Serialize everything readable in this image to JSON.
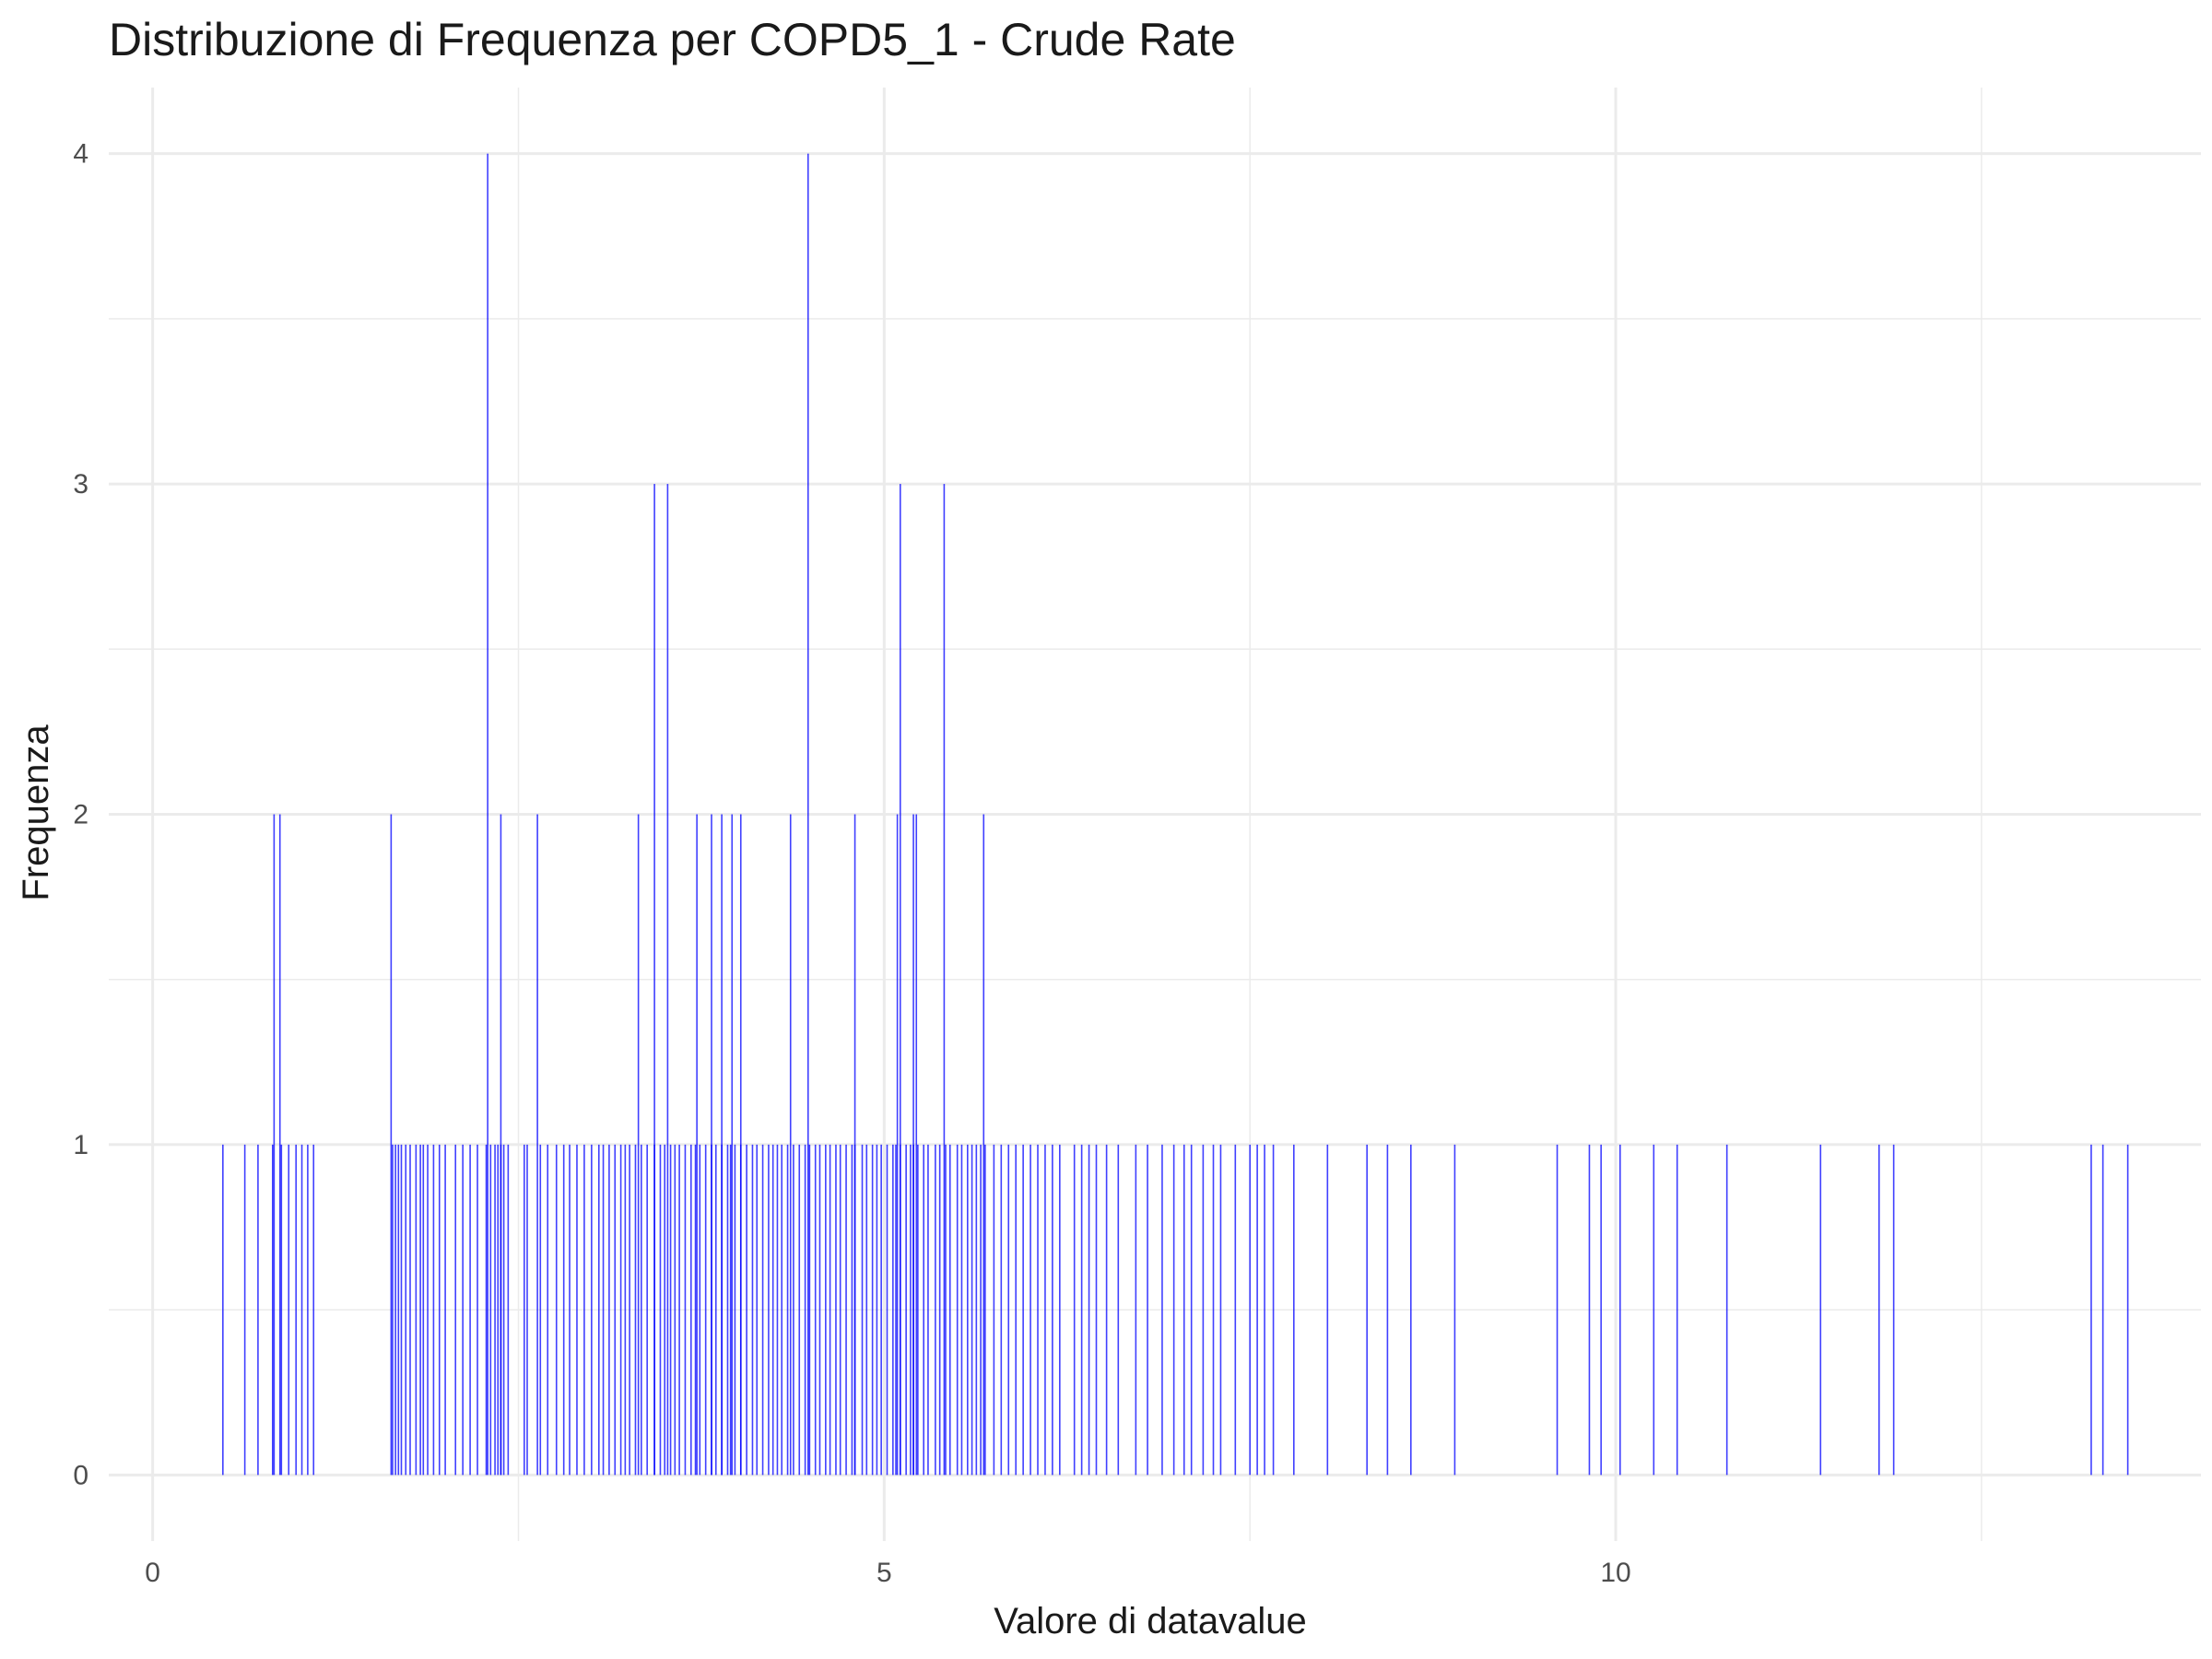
{
  "chart_data": {
    "type": "bar",
    "title": "Distribuzione di Frequenza per COPD5_1 - Crude Rate",
    "xlabel": "Valore di datavalue",
    "ylabel": "Frequenza",
    "xlim": [
      -0.3,
      14.0
    ],
    "ylim": [
      -0.2,
      4.2
    ],
    "xticks": [
      0,
      5,
      10
    ],
    "xtick_labels": [
      "0",
      "5",
      "10"
    ],
    "yticks": [
      0,
      1,
      2,
      3,
      4
    ],
    "ytick_labels": [
      "0",
      "1",
      "2",
      "3",
      "4"
    ],
    "grid": true,
    "bar_color": "#0000ff",
    "series": [
      {
        "x": [
          0.48,
          0.63,
          0.72,
          0.82,
          0.88,
          0.93,
          0.98,
          1.02,
          1.06,
          1.1,
          1.64,
          1.66,
          1.68,
          1.7,
          1.73,
          1.76,
          1.8,
          1.83,
          1.85,
          1.88,
          1.92,
          1.96,
          2.0,
          2.07,
          2.12,
          2.17,
          2.22,
          2.28,
          2.31,
          2.34,
          2.36,
          2.38,
          2.4,
          2.43,
          2.54,
          2.56,
          2.65,
          2.7,
          2.76,
          2.81,
          2.85,
          2.9,
          2.95,
          3.0,
          3.05,
          3.08,
          3.12,
          3.16,
          3.2,
          3.23,
          3.26,
          3.3,
          3.34,
          3.38,
          3.43,
          3.47,
          3.5,
          3.54,
          3.57,
          3.6,
          3.64,
          3.68,
          3.71,
          3.74,
          3.78,
          3.82,
          3.85,
          3.89,
          3.93,
          3.95,
          3.98,
          4.02,
          4.06,
          4.1,
          4.13,
          4.17,
          4.21,
          4.24,
          4.27,
          4.3,
          4.34,
          4.38,
          4.42,
          4.46,
          4.49,
          4.53,
          4.56,
          4.6,
          4.63,
          4.67,
          4.7,
          4.74,
          4.78,
          4.8,
          4.85,
          4.88,
          4.92,
          4.95,
          4.98,
          5.02,
          5.06,
          5.08,
          5.11,
          5.15,
          5.18,
          5.2,
          5.23,
          5.27,
          5.3,
          5.35,
          5.38,
          5.42,
          5.45,
          5.5,
          5.53,
          5.57,
          5.6,
          5.63,
          5.66,
          5.69,
          5.75,
          5.8,
          5.85,
          5.9,
          5.95,
          6.0,
          6.05,
          6.1,
          6.15,
          6.2,
          6.3,
          6.35,
          6.4,
          6.45,
          6.52,
          6.6,
          6.72,
          6.8,
          6.9,
          6.98,
          7.05,
          7.1,
          7.18,
          7.25,
          7.3,
          7.4,
          7.5,
          7.55,
          7.6,
          7.66,
          7.8,
          8.03,
          8.3,
          8.44,
          8.6,
          8.9,
          1.63,
          2.38,
          2.63,
          3.32,
          3.72,
          3.82,
          3.89,
          3.96,
          4.02,
          4.36,
          4.8,
          5.09,
          5.2,
          5.22,
          5.68,
          0.83,
          0.87,
          3.43,
          3.52,
          5.11,
          5.41,
          2.29,
          4.48,
          9.6,
          9.82,
          9.9,
          10.03,
          10.26,
          10.42,
          10.76,
          11.4,
          11.8,
          11.9,
          13.25,
          13.33,
          13.5
        ]
      }
    ],
    "values": [
      1,
      1,
      1,
      1,
      1,
      1,
      1,
      1,
      1,
      1,
      1,
      1,
      1,
      1,
      1,
      1,
      1,
      1,
      1,
      1,
      1,
      1,
      1,
      1,
      1,
      1,
      1,
      1,
      1,
      1,
      1,
      1,
      1,
      1,
      1,
      1,
      1,
      1,
      1,
      1,
      1,
      1,
      1,
      1,
      1,
      1,
      1,
      1,
      1,
      1,
      1,
      1,
      1,
      1,
      1,
      1,
      1,
      1,
      1,
      1,
      1,
      1,
      1,
      1,
      1,
      1,
      1,
      1,
      1,
      1,
      1,
      1,
      1,
      1,
      1,
      1,
      1,
      1,
      1,
      1,
      1,
      1,
      1,
      1,
      1,
      1,
      1,
      1,
      1,
      1,
      1,
      1,
      1,
      1,
      1,
      1,
      1,
      1,
      1,
      1,
      1,
      1,
      1,
      1,
      1,
      1,
      1,
      1,
      1,
      1,
      1,
      1,
      1,
      1,
      1,
      1,
      1,
      1,
      1,
      1,
      1,
      1,
      1,
      1,
      1,
      1,
      1,
      1,
      1,
      1,
      1,
      1,
      1,
      1,
      1,
      1,
      1,
      1,
      1,
      1,
      1,
      1,
      1,
      1,
      1,
      1,
      1,
      1,
      1,
      1,
      1,
      1,
      1,
      1,
      1,
      1,
      2,
      2,
      2,
      2,
      2,
      2,
      2,
      2,
      2,
      2,
      2,
      2,
      2,
      2,
      2,
      2,
      2,
      3,
      3,
      3,
      3,
      4,
      4,
      1,
      1,
      1,
      1,
      1,
      1,
      1,
      1,
      1,
      1,
      1,
      1,
      1
    ]
  }
}
